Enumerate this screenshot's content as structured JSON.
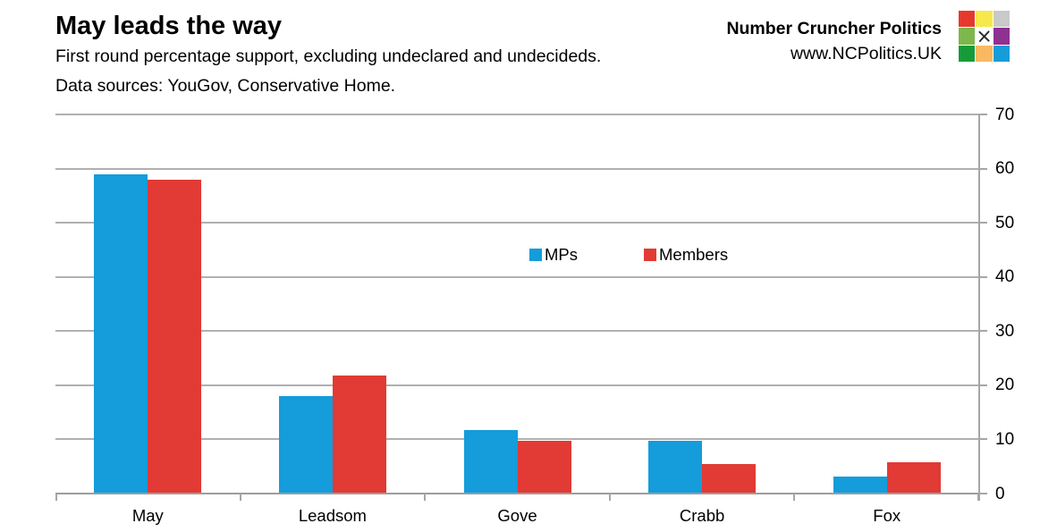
{
  "header": {
    "title": "May leads the way",
    "subtitle_line1": "First round percentage support, excluding undeclared and undecideds.",
    "subtitle_line2": "Data sources: YouGov, Conservative Home.",
    "brand_name": "Number Cruncher Politics",
    "brand_url": "www.NCPolitics.UK",
    "logo_colors": [
      "#e7382d",
      "#f6e94b",
      "#c9c9c9",
      "#7cb84b",
      "#ffffff",
      "#8e3191",
      "#159c39",
      "#f9b960",
      "#189cd9"
    ],
    "logo_center_icon": "x-mark-icon"
  },
  "chart_data": {
    "type": "bar",
    "title": "May leads the way",
    "subtitle": "First round percentage support, excluding undeclared and undecideds. Data sources: YouGov, Conservative Home.",
    "categories": [
      "May",
      "Leadsom",
      "Gove",
      "Crabb",
      "Fox"
    ],
    "series": [
      {
        "name": "MPs",
        "color": "#149cdb",
        "values": [
          59.0,
          18.0,
          11.8,
          9.7,
          3.2
        ]
      },
      {
        "name": "Members",
        "color": "#e23a34",
        "values": [
          58.0,
          21.8,
          9.8,
          5.5,
          5.7
        ]
      }
    ],
    "xlabel": "",
    "ylabel": "",
    "ylim": [
      0,
      70
    ],
    "ytick_step": 10,
    "ytick_labels": [
      "0",
      "10",
      "20",
      "30",
      "40",
      "50",
      "60",
      "70"
    ],
    "grid": "horizontal",
    "gridline_color": "#b0b0b0",
    "axis_side": "right",
    "legend_position": "inside-upper-middle"
  }
}
